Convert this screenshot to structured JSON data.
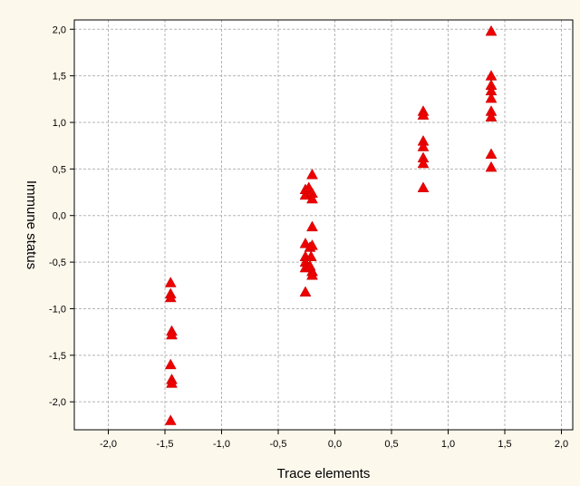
{
  "chart_data": {
    "type": "scatter",
    "title": "",
    "xlabel": "Trace elements",
    "ylabel": "Immune status",
    "xlim": [
      -2.3,
      2.1
    ],
    "ylim": [
      -2.3,
      2.1
    ],
    "xticks": [
      -2.0,
      -1.5,
      -1.0,
      -0.5,
      0.0,
      0.5,
      1.0,
      1.5,
      2.0
    ],
    "yticks": [
      -2.0,
      -1.5,
      -1.0,
      -0.5,
      0.0,
      0.5,
      1.0,
      1.5,
      2.0
    ],
    "xtick_labels": [
      "-2,0",
      "-1,5",
      "-1,0",
      "-0,5",
      "0,0",
      "0,5",
      "1,0",
      "1,5",
      "2,0"
    ],
    "ytick_labels": [
      "-2,0",
      "-1,5",
      "-1,0",
      "-0,5",
      "0,0",
      "0,5",
      "1,0",
      "1,5",
      "2,0"
    ],
    "grid": true,
    "marker": "triangle",
    "marker_color": "#ee0000",
    "background_color": "#fdf8ec",
    "plot_background_color": "#ffffff",
    "series": [
      {
        "points": [
          {
            "x": -1.45,
            "y": -0.72
          },
          {
            "x": -1.45,
            "y": -0.84
          },
          {
            "x": -1.45,
            "y": -0.88
          },
          {
            "x": -1.44,
            "y": -1.24
          },
          {
            "x": -1.44,
            "y": -1.28
          },
          {
            "x": -1.45,
            "y": -1.6
          },
          {
            "x": -1.44,
            "y": -1.76
          },
          {
            "x": -1.44,
            "y": -1.8
          },
          {
            "x": -1.45,
            "y": -2.2
          },
          {
            "x": -0.26,
            "y": 0.22
          },
          {
            "x": -0.26,
            "y": 0.28
          },
          {
            "x": -0.23,
            "y": 0.3
          },
          {
            "x": -0.2,
            "y": 0.24
          },
          {
            "x": -0.2,
            "y": 0.18
          },
          {
            "x": -0.2,
            "y": 0.44
          },
          {
            "x": -0.2,
            "y": -0.12
          },
          {
            "x": -0.26,
            "y": -0.3
          },
          {
            "x": -0.22,
            "y": -0.34
          },
          {
            "x": -0.2,
            "y": -0.32
          },
          {
            "x": -0.26,
            "y": -0.44
          },
          {
            "x": -0.21,
            "y": -0.44
          },
          {
            "x": -0.26,
            "y": -0.5
          },
          {
            "x": -0.26,
            "y": -0.56
          },
          {
            "x": -0.22,
            "y": -0.54
          },
          {
            "x": -0.2,
            "y": -0.6
          },
          {
            "x": -0.2,
            "y": -0.64
          },
          {
            "x": -0.26,
            "y": -0.82
          },
          {
            "x": 0.78,
            "y": 1.12
          },
          {
            "x": 0.78,
            "y": 1.08
          },
          {
            "x": 0.78,
            "y": 0.8
          },
          {
            "x": 0.78,
            "y": 0.74
          },
          {
            "x": 0.78,
            "y": 0.62
          },
          {
            "x": 0.78,
            "y": 0.56
          },
          {
            "x": 0.78,
            "y": 0.3
          },
          {
            "x": 1.38,
            "y": 1.98
          },
          {
            "x": 1.38,
            "y": 1.5
          },
          {
            "x": 1.38,
            "y": 1.4
          },
          {
            "x": 1.38,
            "y": 1.34
          },
          {
            "x": 1.38,
            "y": 1.26
          },
          {
            "x": 1.38,
            "y": 1.12
          },
          {
            "x": 1.38,
            "y": 1.06
          },
          {
            "x": 1.38,
            "y": 0.66
          },
          {
            "x": 1.38,
            "y": 0.52
          }
        ]
      }
    ]
  }
}
